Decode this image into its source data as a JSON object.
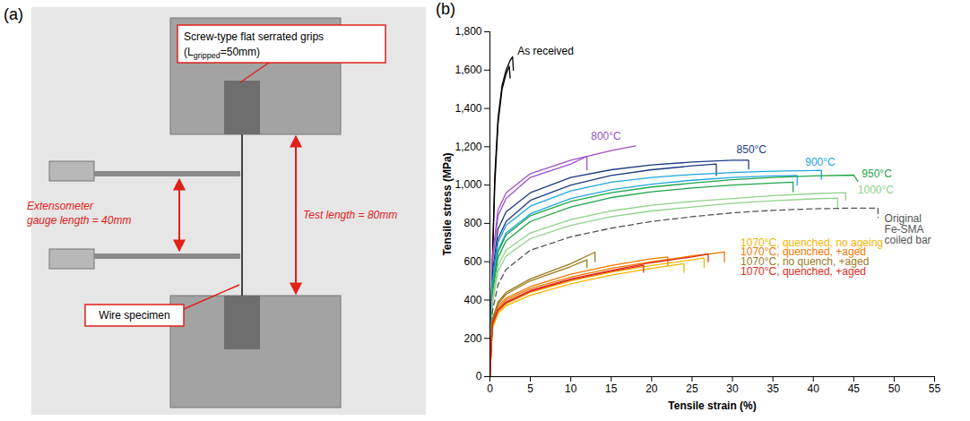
{
  "panel_a": {
    "label": "(a)",
    "grips_label": {
      "text": "Screw-type flat serrated grips",
      "subscript_base": "(L",
      "subscript": "gripped",
      "suffix": "=50mm)"
    },
    "extensometer_label": [
      "Extensometer",
      "gauge length = 40mm"
    ],
    "test_length_label": "Test length = 80mm",
    "specimen_label": "Wire specimen"
  },
  "chart_data": {
    "type": "line",
    "panel_label": "(b)",
    "x_label": "Tensile strain (%)",
    "y_label": "Tensile stress (MPa)",
    "xlim": [
      0,
      55
    ],
    "xticks": [
      0,
      5,
      10,
      15,
      20,
      25,
      30,
      35,
      40,
      45,
      50,
      55
    ],
    "ylim": [
      0,
      1800
    ],
    "yticks": [
      0,
      200,
      400,
      600,
      800,
      1000,
      1200,
      1400,
      1600,
      1800
    ],
    "grid": false,
    "series": [
      {
        "name": "As received",
        "color": "#000000",
        "line_style": "solid",
        "label_at": [
          3.4,
          1700
        ],
        "curves": [
          {
            "x": [
              0,
              0.3,
              0.6,
              1,
              1.5,
              2,
              2.5,
              2.8,
              2.9
            ],
            "values": [
              0,
              600,
              1050,
              1350,
              1520,
              1600,
              1650,
              1670,
              1600
            ]
          },
          {
            "x": [
              0,
              0.3,
              0.6,
              1,
              1.5,
              2,
              2.4,
              2.5
            ],
            "values": [
              0,
              580,
              1000,
              1320,
              1500,
              1580,
              1620,
              1560
            ]
          }
        ]
      },
      {
        "name": "800°C",
        "color": "#9b4fc9",
        "line_style": "solid",
        "label_at": [
          12.5,
          1255
        ],
        "curves": [
          {
            "x": [
              0,
              0.3,
              1,
              2,
              5,
              10,
              15,
              18
            ],
            "values": [
              0,
              620,
              870,
              960,
              1060,
              1130,
              1180,
              1205
            ]
          },
          {
            "x": [
              0,
              0.3,
              1,
              2,
              5,
              10,
              12,
              12
            ],
            "values": [
              0,
              600,
              840,
              930,
              1040,
              1110,
              1150,
              1080
            ]
          }
        ]
      },
      {
        "name": "850°C",
        "color": "#1b3a84",
        "line_style": "solid",
        "label_at": [
          30.5,
          1185
        ],
        "curves": [
          {
            "x": [
              0,
              0.3,
              1,
              2,
              5,
              10,
              15,
              20,
              25,
              30,
              32,
              32
            ],
            "values": [
              0,
              540,
              770,
              860,
              960,
              1040,
              1080,
              1105,
              1120,
              1130,
              1130,
              1085
            ]
          },
          {
            "x": [
              0,
              0.3,
              1,
              2,
              5,
              10,
              15,
              20,
              25,
              28,
              28
            ],
            "values": [
              0,
              500,
              720,
              810,
              920,
              1000,
              1050,
              1080,
              1100,
              1110,
              1050
            ]
          }
        ]
      },
      {
        "name": "900°C",
        "color": "#20a4e0",
        "line_style": "solid",
        "label_at": [
          39,
          1118
        ],
        "curves": [
          {
            "x": [
              0,
              0.3,
              1,
              2,
              5,
              10,
              15,
              20,
              25,
              30,
              35,
              40,
              41,
              41
            ],
            "values": [
              0,
              490,
              700,
              790,
              890,
              970,
              1015,
              1040,
              1055,
              1065,
              1072,
              1076,
              1077,
              1030
            ]
          },
          {
            "x": [
              0,
              0.3,
              1,
              2,
              5,
              10,
              15,
              20,
              25,
              30,
              35,
              38,
              38
            ],
            "values": [
              0,
              460,
              660,
              750,
              850,
              930,
              975,
              1005,
              1025,
              1040,
              1048,
              1050,
              1000
            ]
          }
        ]
      },
      {
        "name": "950°C",
        "color": "#1fa34a",
        "line_style": "solid",
        "label_at": [
          46,
          1060
        ],
        "curves": [
          {
            "x": [
              0,
              0.3,
              1,
              2,
              5,
              10,
              15,
              20,
              25,
              30,
              35,
              40,
              45,
              45.5
            ],
            "values": [
              0,
              450,
              650,
              740,
              840,
              915,
              960,
              990,
              1010,
              1028,
              1040,
              1048,
              1052,
              1020
            ]
          },
          {
            "x": [
              0,
              0.3,
              1,
              2,
              5,
              10,
              15,
              20,
              25,
              30,
              35,
              37.5,
              37.5
            ],
            "values": [
              0,
              430,
              620,
              710,
              810,
              885,
              935,
              965,
              985,
              1000,
              1010,
              1015,
              965
            ]
          }
        ]
      },
      {
        "name": "1000°C",
        "color": "#8fd28a",
        "line_style": "solid",
        "label_at": [
          45.5,
          975
        ],
        "curves": [
          {
            "x": [
              0,
              0.3,
              1,
              2,
              5,
              10,
              15,
              20,
              25,
              30,
              35,
              40,
              44,
              44
            ],
            "values": [
              0,
              400,
              580,
              660,
              750,
              820,
              865,
              895,
              915,
              930,
              945,
              955,
              960,
              920
            ]
          },
          {
            "x": [
              0,
              0.3,
              1,
              2,
              5,
              10,
              15,
              20,
              25,
              30,
              35,
              40,
              43,
              43
            ],
            "values": [
              0,
              380,
              550,
              630,
              720,
              790,
              835,
              865,
              885,
              905,
              918,
              928,
              932,
              880
            ]
          }
        ]
      },
      {
        "name": "Original\nFe-SMA\ncoiled bar",
        "color": "#555555",
        "line_style": "dashed",
        "label_at": [
          48.8,
          770
        ],
        "curves": [
          {
            "x": [
              0,
              0.3,
              1,
              2,
              5,
              10,
              15,
              20,
              25,
              30,
              35,
              40,
              45,
              48,
              48
            ],
            "values": [
              0,
              340,
              480,
              560,
              660,
              730,
              775,
              810,
              835,
              855,
              868,
              876,
              880,
              880,
              830
            ]
          }
        ]
      },
      {
        "name": "1070°C, quenched, no ageing",
        "color": "#f4b400",
        "line_style": "solid",
        "label_at": [
          31,
          700
        ],
        "curves": [
          {
            "x": [
              0,
              0.3,
              1,
              2,
              5,
              10,
              15,
              20,
              25,
              26.5,
              26.5
            ],
            "values": [
              0,
              260,
              340,
              380,
              440,
              500,
              545,
              580,
              610,
              620,
              570
            ]
          },
          {
            "x": [
              0,
              0.3,
              1,
              2,
              5,
              10,
              15,
              20,
              24,
              24
            ],
            "values": [
              0,
              250,
              330,
              370,
              425,
              485,
              530,
              565,
              590,
              545
            ]
          }
        ]
      },
      {
        "name": "1070°C, quenched, +aged",
        "color": "#f07800",
        "line_style": "solid",
        "label_at": [
          31,
          650
        ],
        "curves": [
          {
            "x": [
              0,
              0.3,
              1,
              2,
              5,
              10,
              15,
              20,
              25,
              29,
              29
            ],
            "values": [
              0,
              280,
              360,
              400,
              460,
              520,
              565,
              600,
              630,
              650,
              600
            ]
          },
          {
            "x": [
              0,
              0.3,
              1,
              2,
              5,
              10,
              15,
              20,
              22,
              22
            ],
            "values": [
              0,
              290,
              370,
              410,
              470,
              535,
              580,
              615,
              625,
              580
            ]
          }
        ]
      },
      {
        "name": "1070°C, no quench, +aged",
        "color": "#9a7a1c",
        "line_style": "solid",
        "label_at": [
          31,
          600
        ],
        "curves": [
          {
            "x": [
              0,
              0.3,
              1,
              2,
              5,
              10,
              13,
              13
            ],
            "values": [
              0,
              300,
              390,
              440,
              510,
              590,
              650,
              600
            ]
          },
          {
            "x": [
              0,
              0.3,
              1,
              2,
              5,
              10,
              12,
              12
            ],
            "values": [
              0,
              290,
              380,
              430,
              500,
              575,
              610,
              570
            ]
          }
        ]
      },
      {
        "name": "1070°C, quenched, +aged",
        "color": "#e02a1a",
        "line_style": "solid",
        "label_at": [
          31,
          550
        ],
        "curves": [
          {
            "x": [
              0,
              0.3,
              1,
              2,
              5,
              10,
              15,
              20,
              25,
              27,
              27
            ],
            "values": [
              0,
              280,
              350,
              390,
              450,
              510,
              555,
              595,
              625,
              640,
              600
            ]
          },
          {
            "x": [
              0,
              0.3,
              1,
              2,
              5,
              10,
              15,
              19,
              19
            ],
            "values": [
              0,
              270,
              345,
              385,
              445,
              505,
              550,
              580,
              545
            ]
          }
        ]
      }
    ]
  }
}
